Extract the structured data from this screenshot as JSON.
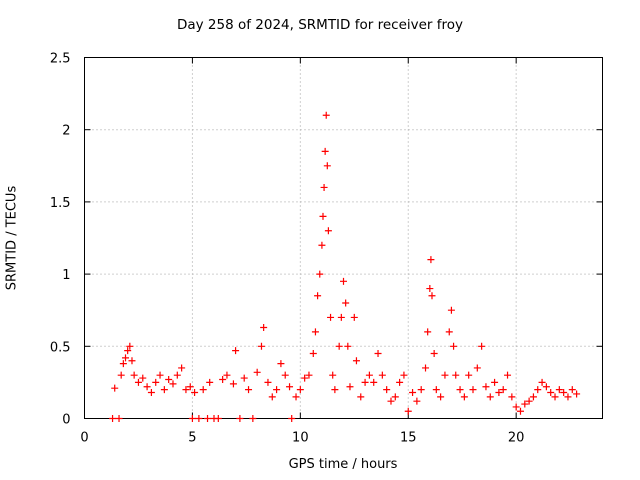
{
  "chart_data": {
    "type": "scatter",
    "title": "Day 258 of 2024, SRMTID for receiver froy",
    "xlabel": "GPS time / hours",
    "ylabel": "SRMTID / TECUs",
    "xlim": [
      0,
      24
    ],
    "ylim": [
      0,
      2.5
    ],
    "x_ticks": [
      0,
      5,
      10,
      15,
      20
    ],
    "y_ticks": [
      0,
      0.5,
      1,
      1.5,
      2,
      2.5
    ],
    "x_tick_labels": [
      "0",
      "5",
      "10",
      "15",
      "20"
    ],
    "y_tick_labels": [
      "0",
      "0.5",
      "1",
      "1.5",
      "2",
      "2.5"
    ],
    "grid": true,
    "marker": "+",
    "series": [
      {
        "name": "SRMTID",
        "color": "#ff0000",
        "points": [
          [
            1.3,
            0
          ],
          [
            1.6,
            0
          ],
          [
            1.4,
            0.21
          ],
          [
            1.7,
            0.3
          ],
          [
            1.8,
            0.38
          ],
          [
            1.9,
            0.42
          ],
          [
            2.0,
            0.47
          ],
          [
            2.1,
            0.5
          ],
          [
            2.2,
            0.4
          ],
          [
            2.3,
            0.3
          ],
          [
            2.5,
            0.25
          ],
          [
            2.7,
            0.28
          ],
          [
            2.9,
            0.22
          ],
          [
            3.1,
            0.18
          ],
          [
            3.3,
            0.25
          ],
          [
            3.5,
            0.3
          ],
          [
            3.7,
            0.2
          ],
          [
            3.9,
            0.27
          ],
          [
            4.1,
            0.24
          ],
          [
            4.3,
            0.3
          ],
          [
            4.5,
            0.35
          ],
          [
            4.7,
            0.2
          ],
          [
            4.9,
            0.22
          ],
          [
            5.1,
            0.18
          ],
          [
            5.0,
            0
          ],
          [
            5.3,
            0
          ],
          [
            5.5,
            0.2
          ],
          [
            5.7,
            0
          ],
          [
            5.8,
            0.25
          ],
          [
            6.0,
            0
          ],
          [
            6.2,
            0
          ],
          [
            6.4,
            0.27
          ],
          [
            6.6,
            0.3
          ],
          [
            6.9,
            0.24
          ],
          [
            7.0,
            0.47
          ],
          [
            7.2,
            0
          ],
          [
            7.4,
            0.28
          ],
          [
            7.6,
            0.2
          ],
          [
            7.8,
            0
          ],
          [
            8.0,
            0.32
          ],
          [
            8.2,
            0.5
          ],
          [
            8.3,
            0.63
          ],
          [
            8.5,
            0.25
          ],
          [
            8.7,
            0.15
          ],
          [
            8.9,
            0.2
          ],
          [
            9.1,
            0.38
          ],
          [
            9.3,
            0.3
          ],
          [
            9.5,
            0.22
          ],
          [
            9.6,
            0
          ],
          [
            9.8,
            0.15
          ],
          [
            10.0,
            0.2
          ],
          [
            10.2,
            0.28
          ],
          [
            10.4,
            0.3
          ],
          [
            10.6,
            0.45
          ],
          [
            10.7,
            0.6
          ],
          [
            10.8,
            0.85
          ],
          [
            10.9,
            1.0
          ],
          [
            11.0,
            1.2
          ],
          [
            11.05,
            1.4
          ],
          [
            11.1,
            1.6
          ],
          [
            11.15,
            1.85
          ],
          [
            11.2,
            2.1
          ],
          [
            11.25,
            1.75
          ],
          [
            11.3,
            1.3
          ],
          [
            11.4,
            0.7
          ],
          [
            11.5,
            0.3
          ],
          [
            11.6,
            0.2
          ],
          [
            11.8,
            0.5
          ],
          [
            11.9,
            0.7
          ],
          [
            12.0,
            0.95
          ],
          [
            12.1,
            0.8
          ],
          [
            12.2,
            0.5
          ],
          [
            12.3,
            0.22
          ],
          [
            12.5,
            0.7
          ],
          [
            12.6,
            0.4
          ],
          [
            12.8,
            0.15
          ],
          [
            13.0,
            0.25
          ],
          [
            13.2,
            0.3
          ],
          [
            13.4,
            0.25
          ],
          [
            13.6,
            0.45
          ],
          [
            13.8,
            0.3
          ],
          [
            14.0,
            0.2
          ],
          [
            14.2,
            0.12
          ],
          [
            14.4,
            0.15
          ],
          [
            14.6,
            0.25
          ],
          [
            14.8,
            0.3
          ],
          [
            15.0,
            0.05
          ],
          [
            15.2,
            0.18
          ],
          [
            15.4,
            0.12
          ],
          [
            15.6,
            0.2
          ],
          [
            15.8,
            0.35
          ],
          [
            15.9,
            0.6
          ],
          [
            16.0,
            0.9
          ],
          [
            16.05,
            1.1
          ],
          [
            16.1,
            0.85
          ],
          [
            16.2,
            0.45
          ],
          [
            16.3,
            0.2
          ],
          [
            16.5,
            0.15
          ],
          [
            16.7,
            0.3
          ],
          [
            16.9,
            0.6
          ],
          [
            17.0,
            0.75
          ],
          [
            17.1,
            0.5
          ],
          [
            17.2,
            0.3
          ],
          [
            17.4,
            0.2
          ],
          [
            17.6,
            0.15
          ],
          [
            17.8,
            0.3
          ],
          [
            18.0,
            0.2
          ],
          [
            18.2,
            0.35
          ],
          [
            18.4,
            0.5
          ],
          [
            18.6,
            0.22
          ],
          [
            18.8,
            0.15
          ],
          [
            19.0,
            0.25
          ],
          [
            19.2,
            0.18
          ],
          [
            19.4,
            0.2
          ],
          [
            19.6,
            0.3
          ],
          [
            19.8,
            0.15
          ],
          [
            20.0,
            0.08
          ],
          [
            20.2,
            0.05
          ],
          [
            20.4,
            0.1
          ],
          [
            20.6,
            0.12
          ],
          [
            20.8,
            0.15
          ],
          [
            21.0,
            0.2
          ],
          [
            21.2,
            0.25
          ],
          [
            21.4,
            0.22
          ],
          [
            21.6,
            0.18
          ],
          [
            21.8,
            0.15
          ],
          [
            22.0,
            0.2
          ],
          [
            22.2,
            0.18
          ],
          [
            22.4,
            0.15
          ],
          [
            22.6,
            0.2
          ],
          [
            22.8,
            0.17
          ]
        ]
      }
    ]
  }
}
